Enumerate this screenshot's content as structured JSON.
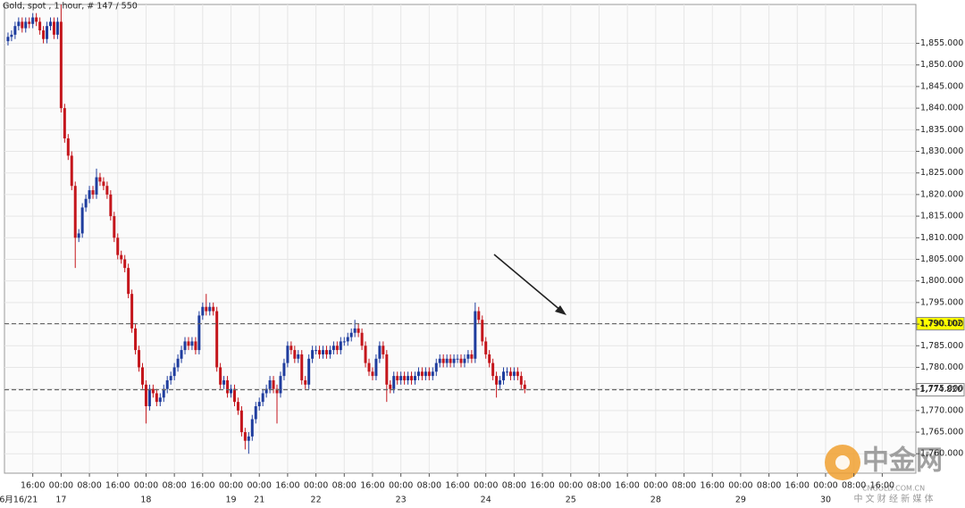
{
  "chart_data": {
    "type": "candlestick",
    "title": "Gold, spot , 1 hour, # 147 / 550",
    "up_color": "#1f3d9e",
    "down_color": "#c4161c",
    "grid": true,
    "ylim": [
      1755.5,
      1864
    ],
    "yticks": [
      {
        "value": 1760,
        "label": "1,760.000"
      },
      {
        "value": 1765,
        "label": "1,765.000"
      },
      {
        "value": 1770,
        "label": "1,770.000"
      },
      {
        "value": 1775,
        "label": "1,775.000"
      },
      {
        "value": 1780,
        "label": "1,780.000"
      },
      {
        "value": 1785,
        "label": "1,785.000"
      },
      {
        "value": 1790,
        "label": "1,790.000"
      },
      {
        "value": 1795,
        "label": "1,795.000"
      },
      {
        "value": 1800,
        "label": "1,800.000"
      },
      {
        "value": 1805,
        "label": "1,805.000"
      },
      {
        "value": 1810,
        "label": "1,810.000"
      },
      {
        "value": 1815,
        "label": "1,815.000"
      },
      {
        "value": 1820,
        "label": "1,820.000"
      },
      {
        "value": 1825,
        "label": "1,825.000"
      },
      {
        "value": 1830,
        "label": "1,830.000"
      },
      {
        "value": 1835,
        "label": "1,835.000"
      },
      {
        "value": 1840,
        "label": "1,840.000"
      },
      {
        "value": 1845,
        "label": "1,845.000"
      },
      {
        "value": 1850,
        "label": "1,850.000"
      },
      {
        "value": 1855,
        "label": "1,855.000"
      }
    ],
    "xlim": [
      -8,
      249.5
    ],
    "xticks": [
      {
        "value": 0,
        "label": "16:00"
      },
      {
        "value": 8,
        "label": "00:00"
      },
      {
        "value": 16,
        "label": "08:00"
      },
      {
        "value": 24,
        "label": "16:00"
      },
      {
        "value": 32,
        "label": "00:00"
      },
      {
        "value": 40,
        "label": "08:00"
      },
      {
        "value": 48,
        "label": "16:00"
      },
      {
        "value": 56,
        "label": "00:00"
      },
      {
        "value": 64,
        "label": "00:00"
      },
      {
        "value": 72,
        "label": "16:00"
      },
      {
        "value": 80,
        "label": "00:00"
      },
      {
        "value": 88,
        "label": "08:00"
      },
      {
        "value": 96,
        "label": "16:00"
      },
      {
        "value": 104,
        "label": "00:00"
      },
      {
        "value": 112,
        "label": "08:00"
      },
      {
        "value": 120,
        "label": "16:00"
      },
      {
        "value": 128,
        "label": "00:00"
      },
      {
        "value": 136,
        "label": "08:00"
      },
      {
        "value": 144,
        "label": "16:00"
      },
      {
        "value": 152,
        "label": "00:00"
      },
      {
        "value": 160,
        "label": "08:00"
      },
      {
        "value": 168,
        "label": "16:00"
      },
      {
        "value": 176,
        "label": "00:00"
      },
      {
        "value": 184,
        "label": "08:00"
      },
      {
        "value": 192,
        "label": "16:00"
      },
      {
        "value": 200,
        "label": "00:00"
      },
      {
        "value": 208,
        "label": "08:00"
      },
      {
        "value": 216,
        "label": "16:00"
      },
      {
        "value": 224,
        "label": "00:00"
      },
      {
        "value": 232,
        "label": "08:00"
      },
      {
        "value": 240,
        "label": "16:00"
      }
    ],
    "day_labels": [
      {
        "value": -4,
        "label": "6月16/21"
      },
      {
        "value": 8,
        "label": "17"
      },
      {
        "value": 32,
        "label": "18"
      },
      {
        "value": 56,
        "label": "19"
      },
      {
        "value": 64,
        "label": "21"
      },
      {
        "value": 80,
        "label": "22"
      },
      {
        "value": 104,
        "label": "23"
      },
      {
        "value": 128,
        "label": "24"
      },
      {
        "value": 152,
        "label": "25"
      },
      {
        "value": 176,
        "label": "28"
      },
      {
        "value": 200,
        "label": "29"
      },
      {
        "value": 224,
        "label": "30"
      }
    ],
    "hlines": [
      {
        "value": 1790.102,
        "label": "1,790.102",
        "color": "#ffff00"
      },
      {
        "value": 1774.82,
        "label": "1,774.820",
        "color": "#ffffff"
      }
    ],
    "x": [
      -7,
      -6,
      -5,
      -4,
      -3,
      -2,
      -1,
      0,
      1,
      2,
      3,
      4,
      5,
      6,
      7,
      8,
      9,
      10,
      11,
      12,
      13,
      14,
      15,
      16,
      17,
      18,
      19,
      20,
      21,
      22,
      23,
      24,
      25,
      26,
      27,
      28,
      29,
      30,
      31,
      32,
      33,
      34,
      35,
      36,
      37,
      38,
      39,
      40,
      41,
      42,
      43,
      44,
      45,
      46,
      47,
      48,
      49,
      50,
      51,
      52,
      53,
      54,
      55,
      56,
      57,
      58,
      59,
      60,
      61,
      62,
      63,
      64,
      65,
      66,
      67,
      68,
      69,
      70,
      71,
      72,
      73,
      74,
      75,
      76,
      77,
      78,
      79,
      80,
      81,
      82,
      83,
      84,
      85,
      86,
      87,
      88,
      89,
      90,
      91,
      92,
      93,
      94,
      95,
      96,
      97,
      98,
      99,
      100,
      101,
      102,
      103,
      104,
      105,
      106,
      107,
      108,
      109,
      110,
      111,
      112,
      113,
      114,
      115,
      116,
      117,
      118,
      119,
      120,
      121,
      122,
      123,
      124,
      125,
      126,
      127,
      128,
      129,
      130,
      131,
      132,
      133,
      134,
      135,
      136,
      137,
      138,
      139
    ],
    "open": [
      1855.5,
      1856.5,
      1857,
      1859,
      1860,
      1858.5,
      1860,
      1859.5,
      1861,
      1860,
      1858,
      1856,
      1859,
      1860,
      1857,
      1860,
      1840,
      1833,
      1829,
      1822,
      1810,
      1811,
      1817,
      1819,
      1821,
      1820,
      1824,
      1823,
      1822,
      1820,
      1815,
      1810,
      1806,
      1805,
      1803,
      1797,
      1789,
      1784,
      1780,
      1776,
      1771,
      1775,
      1774,
      1772,
      1773,
      1775,
      1777,
      1778,
      1780,
      1782,
      1784,
      1786,
      1785,
      1786,
      1784,
      1792,
      1794,
      1793,
      1794,
      1793,
      1780,
      1776,
      1777,
      1774,
      1775,
      1772,
      1770,
      1765,
      1763,
      1764,
      1768,
      1771,
      1772,
      1774,
      1775,
      1777,
      1775,
      1774,
      1778,
      1781,
      1785,
      1784,
      1782,
      1783,
      1777,
      1776,
      1782,
      1784,
      1784,
      1783,
      1784,
      1783,
      1784,
      1785,
      1784,
      1786,
      1786,
      1787,
      1788,
      1789,
      1788,
      1785,
      1781,
      1779,
      1778,
      1782,
      1785,
      1783,
      1776,
      1775,
      1778,
      1777,
      1778,
      1777,
      1778,
      1777,
      1778,
      1779,
      1778,
      1779,
      1778,
      1779,
      1781,
      1782,
      1781,
      1782,
      1781,
      1782,
      1782,
      1781,
      1782,
      1783,
      1782,
      1793,
      1791,
      1786,
      1783,
      1781,
      1778,
      1776,
      1777,
      1779,
      1779,
      1778,
      1779,
      1778,
      1776
    ],
    "high": [
      1857.5,
      1858,
      1860,
      1861,
      1861,
      1861,
      1861,
      1862,
      1862,
      1861,
      1859,
      1860,
      1861,
      1861,
      1861,
      1864,
      1841,
      1834,
      1830,
      1823,
      1812,
      1818,
      1820,
      1822,
      1822,
      1826,
      1825,
      1824,
      1823,
      1821,
      1816,
      1811,
      1807,
      1806,
      1804,
      1798,
      1790,
      1785,
      1781,
      1777,
      1776,
      1776,
      1775,
      1774,
      1776,
      1778,
      1779,
      1781,
      1783,
      1785,
      1787,
      1787,
      1787,
      1787,
      1793,
      1795,
      1797,
      1795,
      1795,
      1794,
      1781,
      1778,
      1778,
      1776,
      1776,
      1773,
      1771,
      1766,
      1765,
      1769,
      1772,
      1773,
      1775,
      1776,
      1778,
      1778,
      1776,
      1779,
      1782,
      1786,
      1786,
      1785,
      1784,
      1784,
      1778,
      1783,
      1785,
      1785,
      1785,
      1785,
      1785,
      1785,
      1786,
      1786,
      1787,
      1787,
      1788,
      1789,
      1791,
      1790,
      1789,
      1786,
      1782,
      1780,
      1783,
      1786,
      1786,
      1784,
      1777,
      1779,
      1779,
      1779,
      1779,
      1779,
      1779,
      1779,
      1780,
      1780,
      1780,
      1780,
      1780,
      1782,
      1783,
      1783,
      1783,
      1783,
      1783,
      1783,
      1783,
      1783,
      1784,
      1784,
      1795,
      1794,
      1792,
      1787,
      1784,
      1782,
      1779,
      1778,
      1780,
      1780,
      1780,
      1780,
      1780,
      1779,
      1777
    ],
    "low": [
      1854.5,
      1855.5,
      1856,
      1858,
      1857.5,
      1857.5,
      1858.5,
      1858.5,
      1859,
      1857,
      1855,
      1855,
      1858,
      1856,
      1856,
      1839,
      1832,
      1828,
      1821,
      1803,
      1809,
      1810,
      1816,
      1818,
      1819,
      1819,
      1822,
      1821,
      1819,
      1814,
      1809,
      1805,
      1804,
      1802,
      1796,
      1788,
      1783,
      1779,
      1775,
      1767,
      1770,
      1773,
      1771,
      1771,
      1772,
      1774,
      1776,
      1777,
      1779,
      1781,
      1783,
      1784,
      1784,
      1783,
      1783,
      1791,
      1792,
      1792,
      1792,
      1779,
      1775,
      1775,
      1773,
      1773,
      1771,
      1769,
      1764,
      1761,
      1760,
      1763,
      1767,
      1770,
      1771,
      1773,
      1774,
      1774,
      1767,
      1773,
      1777,
      1780,
      1783,
      1781,
      1781,
      1776,
      1775,
      1775,
      1781,
      1783,
      1782,
      1782,
      1782,
      1782,
      1783,
      1783,
      1783,
      1785,
      1785,
      1786,
      1787,
      1787,
      1784,
      1780,
      1778,
      1777,
      1777,
      1781,
      1782,
      1772,
      1774,
      1774,
      1776,
      1776,
      1776,
      1776,
      1776,
      1776,
      1777,
      1777,
      1777,
      1777,
      1777,
      1778,
      1780,
      1780,
      1780,
      1780,
      1780,
      1781,
      1780,
      1780,
      1781,
      1781,
      1781,
      1790,
      1785,
      1782,
      1780,
      1777,
      1773,
      1775,
      1776,
      1778,
      1777,
      1777,
      1777,
      1775,
      1774
    ],
    "close": [
      1856.5,
      1857,
      1859,
      1860,
      1858.5,
      1860,
      1859.5,
      1861,
      1860,
      1858,
      1856,
      1859,
      1860,
      1857,
      1860,
      1840,
      1833,
      1829,
      1822,
      1810,
      1811,
      1817,
      1819,
      1821,
      1820,
      1824,
      1823,
      1822,
      1820,
      1815,
      1810,
      1806,
      1805,
      1803,
      1797,
      1789,
      1784,
      1780,
      1776,
      1771,
      1775,
      1774,
      1772,
      1773,
      1775,
      1777,
      1778,
      1780,
      1782,
      1784,
      1786,
      1785,
      1786,
      1784,
      1792,
      1794,
      1793,
      1794,
      1793,
      1780,
      1776,
      1777,
      1774,
      1775,
      1772,
      1770,
      1765,
      1763,
      1764,
      1768,
      1771,
      1772,
      1774,
      1775,
      1777,
      1775,
      1774,
      1778,
      1781,
      1785,
      1784,
      1782,
      1783,
      1777,
      1776,
      1782,
      1784,
      1784,
      1783,
      1784,
      1783,
      1784,
      1785,
      1784,
      1786,
      1786,
      1787,
      1788,
      1789,
      1788,
      1785,
      1781,
      1779,
      1778,
      1782,
      1785,
      1783,
      1776,
      1775,
      1778,
      1777,
      1778,
      1777,
      1778,
      1777,
      1778,
      1779,
      1778,
      1779,
      1778,
      1779,
      1781,
      1782,
      1781,
      1782,
      1781,
      1782,
      1782,
      1781,
      1782,
      1783,
      1782,
      1793,
      1791,
      1786,
      1783,
      1781,
      1778,
      1776,
      1777,
      1779,
      1779,
      1778,
      1779,
      1778,
      1776,
      1775
    ],
    "watermark": {
      "title": "中金网",
      "url": "CNGOLD.COM.CN",
      "tagline": "中 文 财 经 新 媒 体"
    }
  }
}
